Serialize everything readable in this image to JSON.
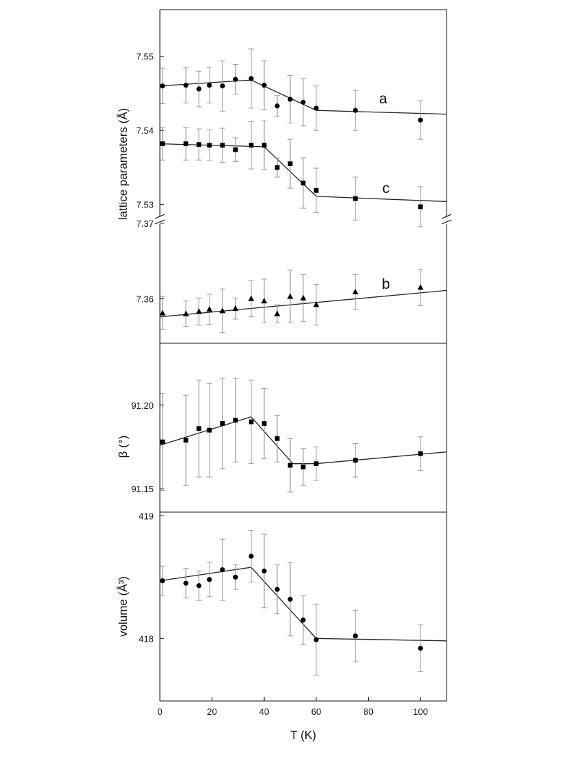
{
  "figure": {
    "x_axis_label": "T (K)",
    "x_ticks": [
      0,
      20,
      40,
      60,
      80,
      100
    ],
    "xlim": [
      0,
      110
    ]
  },
  "chart_data": [
    {
      "type": "scatter",
      "panel": "lattice-ac",
      "ylabel": "lattice parameters (Å)",
      "ylim": [
        7.5283,
        7.5563
      ],
      "y_ticks": [
        7.53,
        7.54,
        7.55
      ],
      "y_tick_labels": [
        "7.53",
        "7.54",
        "7.55"
      ],
      "series": [
        {
          "name": "a",
          "marker": "circle",
          "x": [
            1,
            10,
            15,
            19,
            24,
            29,
            35,
            40,
            45,
            50,
            55,
            60,
            75,
            100
          ],
          "y": [
            7.546,
            7.5461,
            7.5456,
            7.5461,
            7.546,
            7.5469,
            7.547,
            7.5461,
            7.5433,
            7.5442,
            7.5438,
            7.543,
            7.5427,
            7.5414
          ],
          "err": [
            0.0024,
            0.0024,
            0.0024,
            0.0024,
            0.0034,
            0.002,
            0.004,
            0.0033,
            0.0014,
            0.0032,
            0.0032,
            0.003,
            0.0027,
            0.0026
          ],
          "fit": {
            "x": [
              0,
              35,
              60,
              110
            ],
            "y": [
              7.546,
              7.5468,
              7.5427,
              7.5422
            ]
          }
        },
        {
          "name": "c",
          "marker": "square",
          "x": [
            1,
            10,
            15,
            19,
            24,
            29,
            35,
            40,
            45,
            50,
            55,
            60,
            75,
            100
          ],
          "y": [
            7.5382,
            7.5382,
            7.5381,
            7.538,
            7.538,
            7.5374,
            7.538,
            7.538,
            7.535,
            7.5355,
            7.5329,
            7.5319,
            7.5308,
            7.5297
          ],
          "err": [
            0.0022,
            0.0022,
            0.0021,
            0.0021,
            0.0023,
            0.0016,
            0.0032,
            0.0033,
            0.0013,
            0.0033,
            0.0034,
            0.003,
            0.0029,
            0.0027
          ],
          "fit": {
            "x": [
              0,
              40,
              60,
              110
            ],
            "y": [
              7.5382,
              7.5378,
              7.5311,
              7.5304
            ]
          }
        }
      ],
      "labels": [
        "a",
        "c"
      ]
    },
    {
      "type": "scatter",
      "panel": "lattice-b",
      "ylabel": "",
      "ylim": [
        7.3541,
        7.3699
      ],
      "y_ticks": [
        7.36,
        7.37
      ],
      "y_tick_labels": [
        "7.36",
        "7.37"
      ],
      "series": [
        {
          "name": "b",
          "marker": "triangle",
          "x": [
            1,
            10,
            15,
            19,
            24,
            29,
            35,
            40,
            45,
            50,
            55,
            60,
            75,
            100
          ],
          "y": [
            7.3581,
            7.358,
            7.3583,
            7.3586,
            7.3584,
            7.3587,
            7.36,
            7.3597,
            7.358,
            7.3603,
            7.3601,
            7.3592,
            7.3609,
            7.3615
          ],
          "err": [
            0.0022,
            0.0017,
            0.0018,
            0.002,
            0.0029,
            0.0014,
            0.0024,
            0.0029,
            0.0012,
            0.0035,
            0.0031,
            0.0027,
            0.0023,
            0.0024
          ],
          "fit": {
            "x": [
              0,
              110
            ],
            "y": [
              7.3576,
              7.3611
            ]
          }
        }
      ],
      "labels": [
        "b"
      ]
    },
    {
      "type": "scatter",
      "panel": "beta",
      "ylabel": "β (°)",
      "ylim": [
        91.136,
        91.237
      ],
      "y_ticks": [
        91.15,
        91.2
      ],
      "y_tick_labels": [
        "91.15",
        "91.20"
      ],
      "series": [
        {
          "name": "β",
          "marker": "square",
          "x": [
            1,
            10,
            15,
            19,
            24,
            29,
            35,
            40,
            45,
            50,
            55,
            60,
            75,
            100
          ],
          "y": [
            91.178,
            91.179,
            91.186,
            91.185,
            91.189,
            91.191,
            91.19,
            91.189,
            91.18,
            91.164,
            91.163,
            91.165,
            91.167,
            91.171
          ],
          "err": [
            0.029,
            0.027,
            0.029,
            0.028,
            0.027,
            0.025,
            0.025,
            0.021,
            0.014,
            0.016,
            0.011,
            0.01,
            0.01,
            0.01
          ],
          "fit": {
            "x": [
              0,
              35,
              51,
              60,
              110
            ],
            "y": [
              91.176,
              91.193,
              91.165,
              91.165,
              91.172
            ]
          }
        }
      ]
    },
    {
      "type": "scatter",
      "panel": "volume",
      "ylabel": "volume (Å³)",
      "ylim": [
        417.49,
        419.03
      ],
      "y_ticks": [
        418,
        419
      ],
      "y_tick_labels": [
        "418",
        "419"
      ],
      "series": [
        {
          "name": "volume",
          "marker": "circle",
          "x": [
            1,
            10,
            15,
            19,
            24,
            29,
            35,
            40,
            45,
            50,
            55,
            60,
            75,
            100
          ],
          "y": [
            418.47,
            418.45,
            418.43,
            418.48,
            418.56,
            418.5,
            418.67,
            418.55,
            418.4,
            418.32,
            418.15,
            417.99,
            418.02,
            417.92
          ],
          "err": [
            0.12,
            0.12,
            0.12,
            0.14,
            0.25,
            0.1,
            0.21,
            0.3,
            0.2,
            0.3,
            0.2,
            0.29,
            0.21,
            0.19
          ],
          "fit": {
            "x": [
              0,
              35,
              60,
              110
            ],
            "y": [
              418.47,
              418.58,
              418.0,
              417.98
            ]
          }
        }
      ]
    }
  ]
}
